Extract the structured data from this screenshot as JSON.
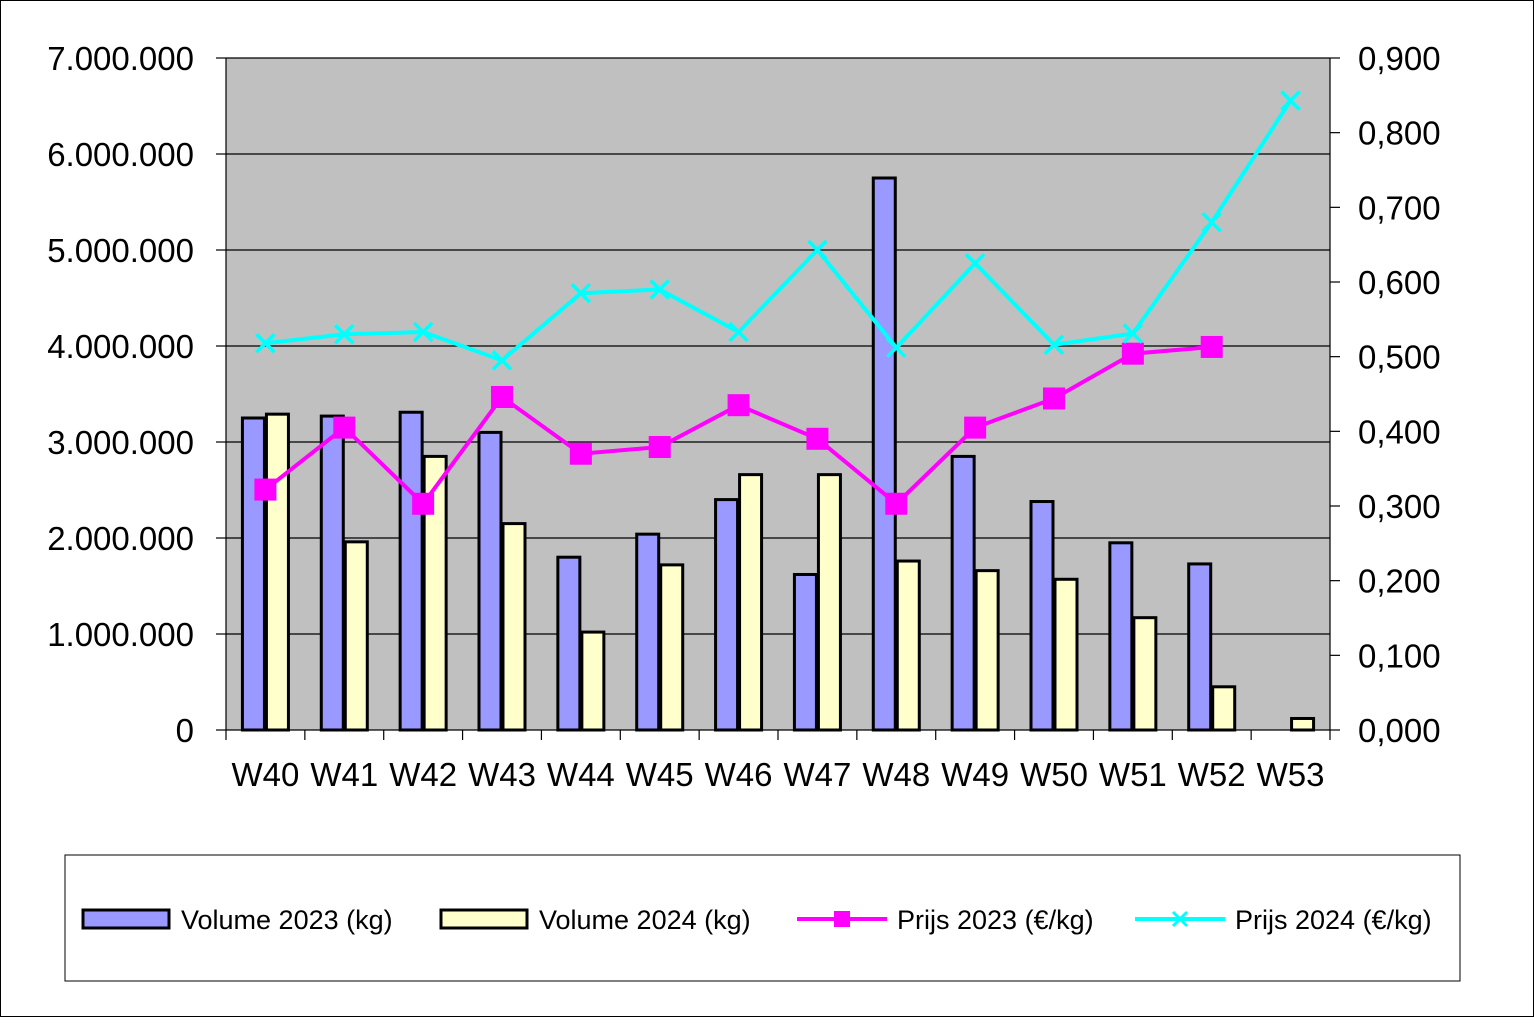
{
  "chart_data": {
    "type": "bar",
    "categories": [
      "W40",
      "W41",
      "W42",
      "W43",
      "W44",
      "W45",
      "W46",
      "W47",
      "W48",
      "W49",
      "W50",
      "W51",
      "W52",
      "W53"
    ],
    "y_left": {
      "ylim": [
        0,
        7000000
      ],
      "ticks": [
        0,
        1000000,
        2000000,
        3000000,
        4000000,
        5000000,
        6000000,
        7000000
      ],
      "tick_labels": [
        "0",
        "1.000.000",
        "2.000.000",
        "3.000.000",
        "4.000.000",
        "5.000.000",
        "6.000.000",
        "7.000.000"
      ]
    },
    "y_right": {
      "ylim": [
        0,
        0.9
      ],
      "ticks": [
        0,
        0.1,
        0.2,
        0.3,
        0.4,
        0.5,
        0.6,
        0.7,
        0.8,
        0.9
      ],
      "tick_labels": [
        "0,000",
        "0,100",
        "0,200",
        "0,300",
        "0,400",
        "0,500",
        "0,600",
        "0,700",
        "0,800",
        "0,900"
      ]
    },
    "series": [
      {
        "name": "Volume 2023 (kg)",
        "kind": "bar",
        "axis": "left",
        "color": "#9999ff",
        "values": [
          3250000,
          3270000,
          3310000,
          3100000,
          1800000,
          2040000,
          2400000,
          1620000,
          5750000,
          2850000,
          2380000,
          1950000,
          1730000,
          null
        ]
      },
      {
        "name": "Volume 2024 (kg)",
        "kind": "bar",
        "axis": "left",
        "color": "#ffffcc",
        "values": [
          3290000,
          1960000,
          2850000,
          2150000,
          1020000,
          1720000,
          2660000,
          2660000,
          1760000,
          1660000,
          1570000,
          1170000,
          450000,
          120000
        ]
      },
      {
        "name": "Prijs 2023 (€/kg)",
        "kind": "line",
        "marker": "square",
        "axis": "right",
        "color": "#ff00ff",
        "values": [
          0.322,
          0.405,
          0.303,
          0.446,
          0.37,
          0.379,
          0.435,
          0.39,
          0.303,
          0.405,
          0.444,
          0.504,
          0.513,
          null
        ]
      },
      {
        "name": "Prijs 2024 (€/kg)",
        "kind": "line",
        "marker": "x",
        "axis": "right",
        "color": "#00ffff",
        "values": [
          0.518,
          0.53,
          0.533,
          0.495,
          0.585,
          0.59,
          0.533,
          0.643,
          0.512,
          0.625,
          0.516,
          0.531,
          0.68,
          0.843
        ]
      }
    ],
    "grid": true,
    "plot_background": "#c0c0c0",
    "legend_position": "bottom"
  }
}
